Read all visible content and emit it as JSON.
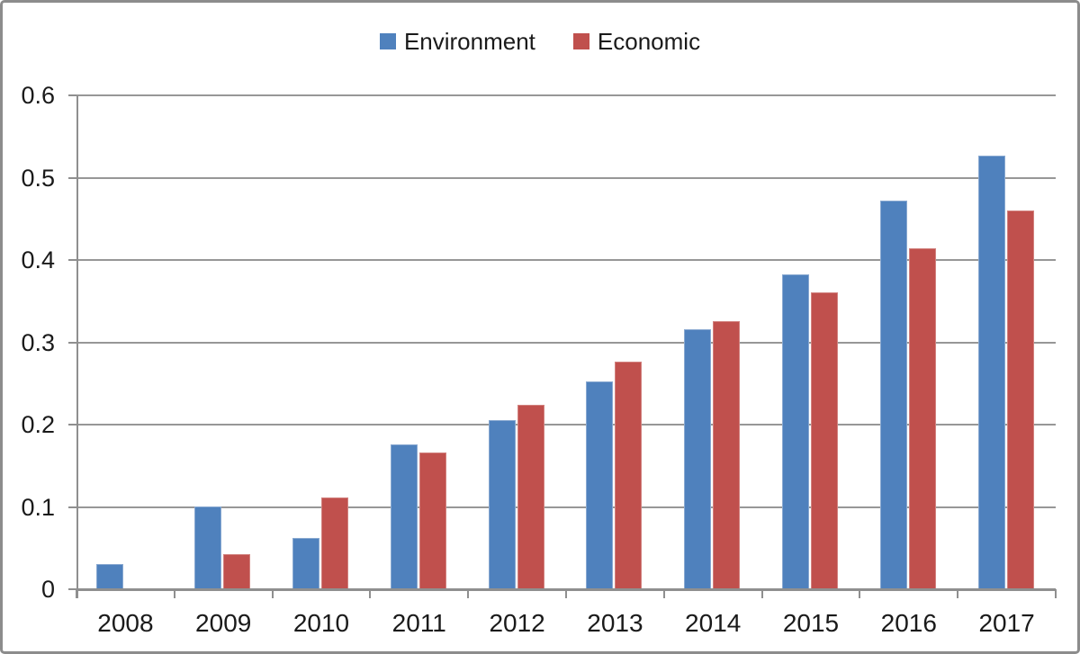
{
  "chart_data": {
    "type": "bar",
    "title": "",
    "xlabel": "",
    "ylabel": "",
    "categories": [
      "2008",
      "2009",
      "2010",
      "2011",
      "2012",
      "2013",
      "2014",
      "2015",
      "2016",
      "2017"
    ],
    "series": [
      {
        "name": "Environment",
        "color": "#4f81bd",
        "edge_color": "#89a9d1",
        "values": [
          0.031,
          0.1,
          0.062,
          0.176,
          0.205,
          0.253,
          0.316,
          0.382,
          0.472,
          0.527
        ]
      },
      {
        "name": "Economic",
        "color": "#c0504d",
        "edge_color": "#d2827f",
        "values": [
          0,
          0.043,
          0.111,
          0.166,
          0.224,
          0.276,
          0.326,
          0.361,
          0.414,
          0.46
        ]
      }
    ],
    "ylim": [
      0,
      0.6
    ],
    "ytick_step": 0.1,
    "ytick_labels": [
      "0",
      "0.1",
      "0.2",
      "0.3",
      "0.4",
      "0.5",
      "0.6"
    ],
    "grid": true,
    "legend_position": "top-center"
  },
  "frame": {
    "background": "#ffffff",
    "border_color": "#8c8c8c",
    "gridline_color": "#979797",
    "axis_color": "#8f8f8f",
    "text_color": "#1a1a1a"
  }
}
